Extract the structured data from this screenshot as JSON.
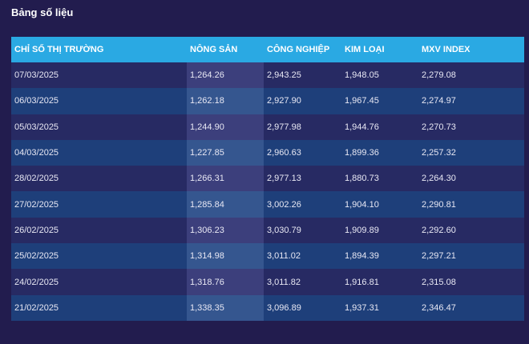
{
  "page": {
    "title": "Bảng số liệu"
  },
  "chart_data": {
    "type": "table",
    "columns": [
      "CHỈ SỐ THỊ TRƯỜNG",
      "NÔNG SẢN",
      "CÔNG NGHIỆP",
      "KIM LOẠI",
      "MXV INDEX"
    ],
    "rows": [
      [
        "07/03/2025",
        "1,264.26",
        "2,943.25",
        "1,948.05",
        "2,279.08"
      ],
      [
        "06/03/2025",
        "1,262.18",
        "2,927.90",
        "1,967.45",
        "2,274.97"
      ],
      [
        "05/03/2025",
        "1,244.90",
        "2,977.98",
        "1,944.76",
        "2,270.73"
      ],
      [
        "04/03/2025",
        "1,227.85",
        "2,960.63",
        "1,899.36",
        "2,257.32"
      ],
      [
        "28/02/2025",
        "1,266.31",
        "2,977.13",
        "1,880.73",
        "2,264.30"
      ],
      [
        "27/02/2025",
        "1,285.84",
        "3,002.26",
        "1,904.10",
        "2,290.81"
      ],
      [
        "26/02/2025",
        "1,306.23",
        "3,030.79",
        "1,909.89",
        "2,292.60"
      ],
      [
        "25/02/2025",
        "1,314.98",
        "3,011.02",
        "1,894.39",
        "2,297.21"
      ],
      [
        "24/02/2025",
        "1,318.76",
        "3,011.82",
        "1,916.81",
        "2,315.08"
      ],
      [
        "21/02/2025",
        "1,338.35",
        "3,096.89",
        "1,937.31",
        "2,346.47"
      ]
    ]
  },
  "colors": {
    "background": "#221c4e",
    "header": "#2aa9e3",
    "row_odd": "#272a63",
    "row_even": "#1e3f7a",
    "highlight_column": "#3c3f7c"
  }
}
